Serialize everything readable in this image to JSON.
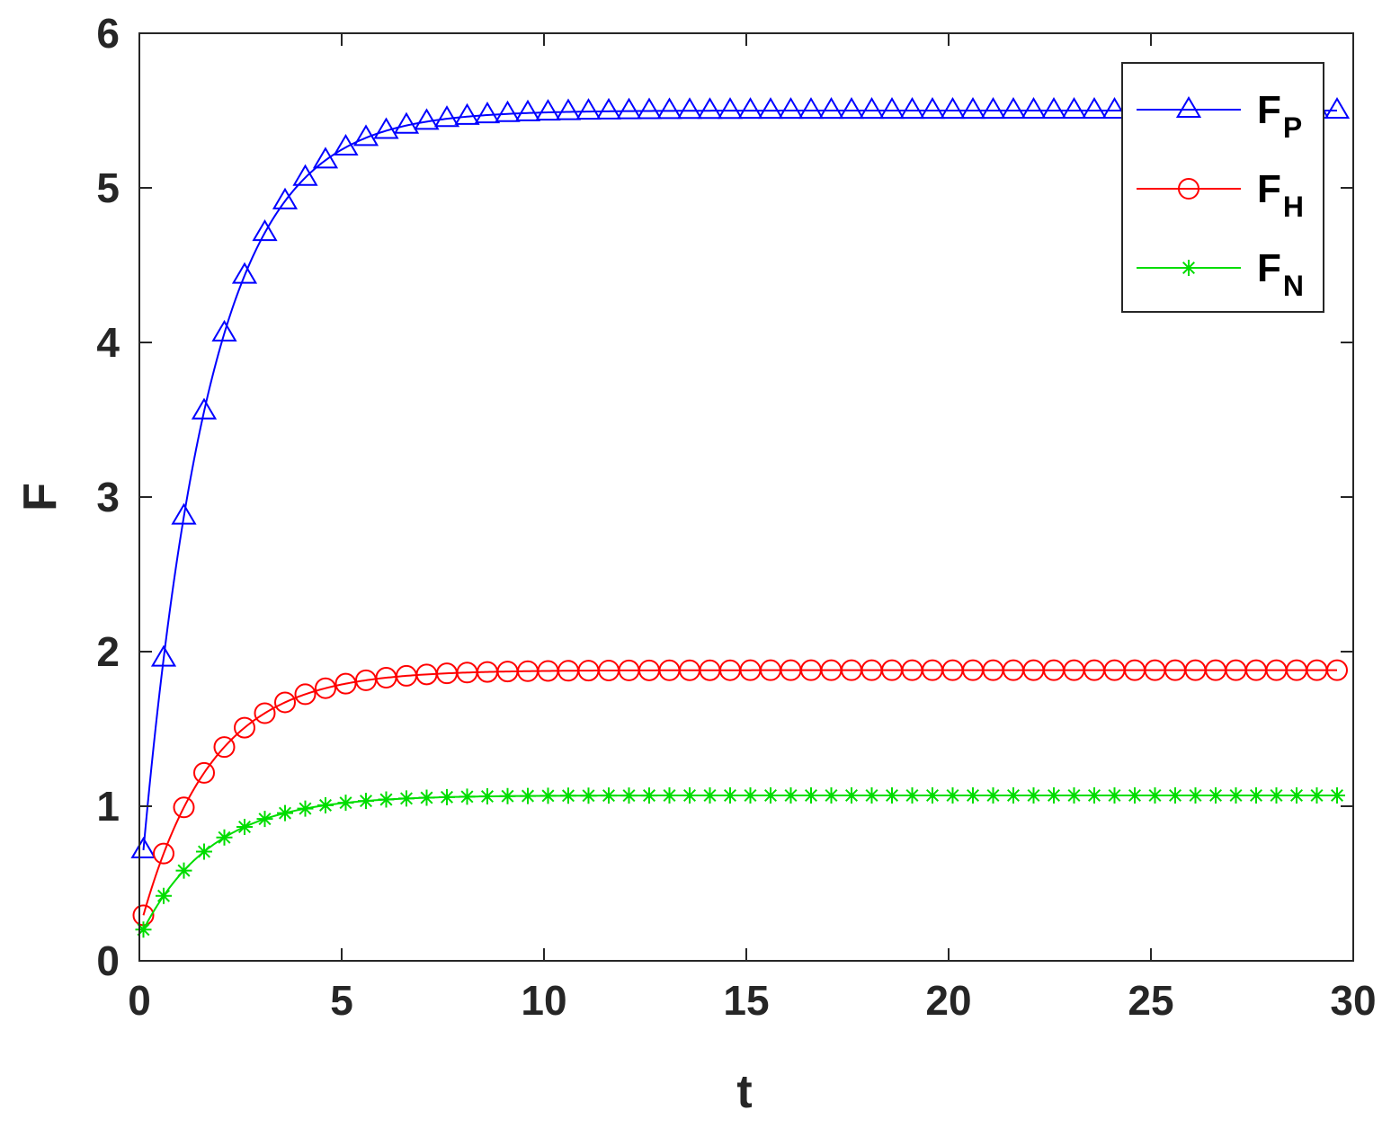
{
  "chart_data": {
    "type": "line",
    "title": "",
    "xlabel": "t",
    "ylabel": "F",
    "xlim": [
      0,
      30
    ],
    "ylim": [
      0,
      6
    ],
    "xticks": [
      "0",
      "5",
      "10",
      "15",
      "20",
      "25",
      "30"
    ],
    "yticks": [
      "0",
      "1",
      "2",
      "3",
      "4",
      "5",
      "6"
    ],
    "grid": false,
    "legend_position": "top-right",
    "marker_interval": 0.5,
    "series": [
      {
        "name": "F",
        "subscript": "P",
        "color": "#0000ff",
        "marker": "triangle",
        "start": 0.42,
        "steady": 5.5,
        "rate": 0.6,
        "x_end": 29.6
      },
      {
        "name": "F",
        "subscript": "H",
        "color": "#ff0000",
        "marker": "circle",
        "start": 0.2,
        "steady": 1.88,
        "rate": 0.58,
        "x_end": 29.6
      },
      {
        "name": "F",
        "subscript": "N",
        "color": "#00dd00",
        "marker": "asterisk",
        "start": 0.15,
        "steady": 1.07,
        "rate": 0.58,
        "x_end": 29.6
      }
    ]
  }
}
